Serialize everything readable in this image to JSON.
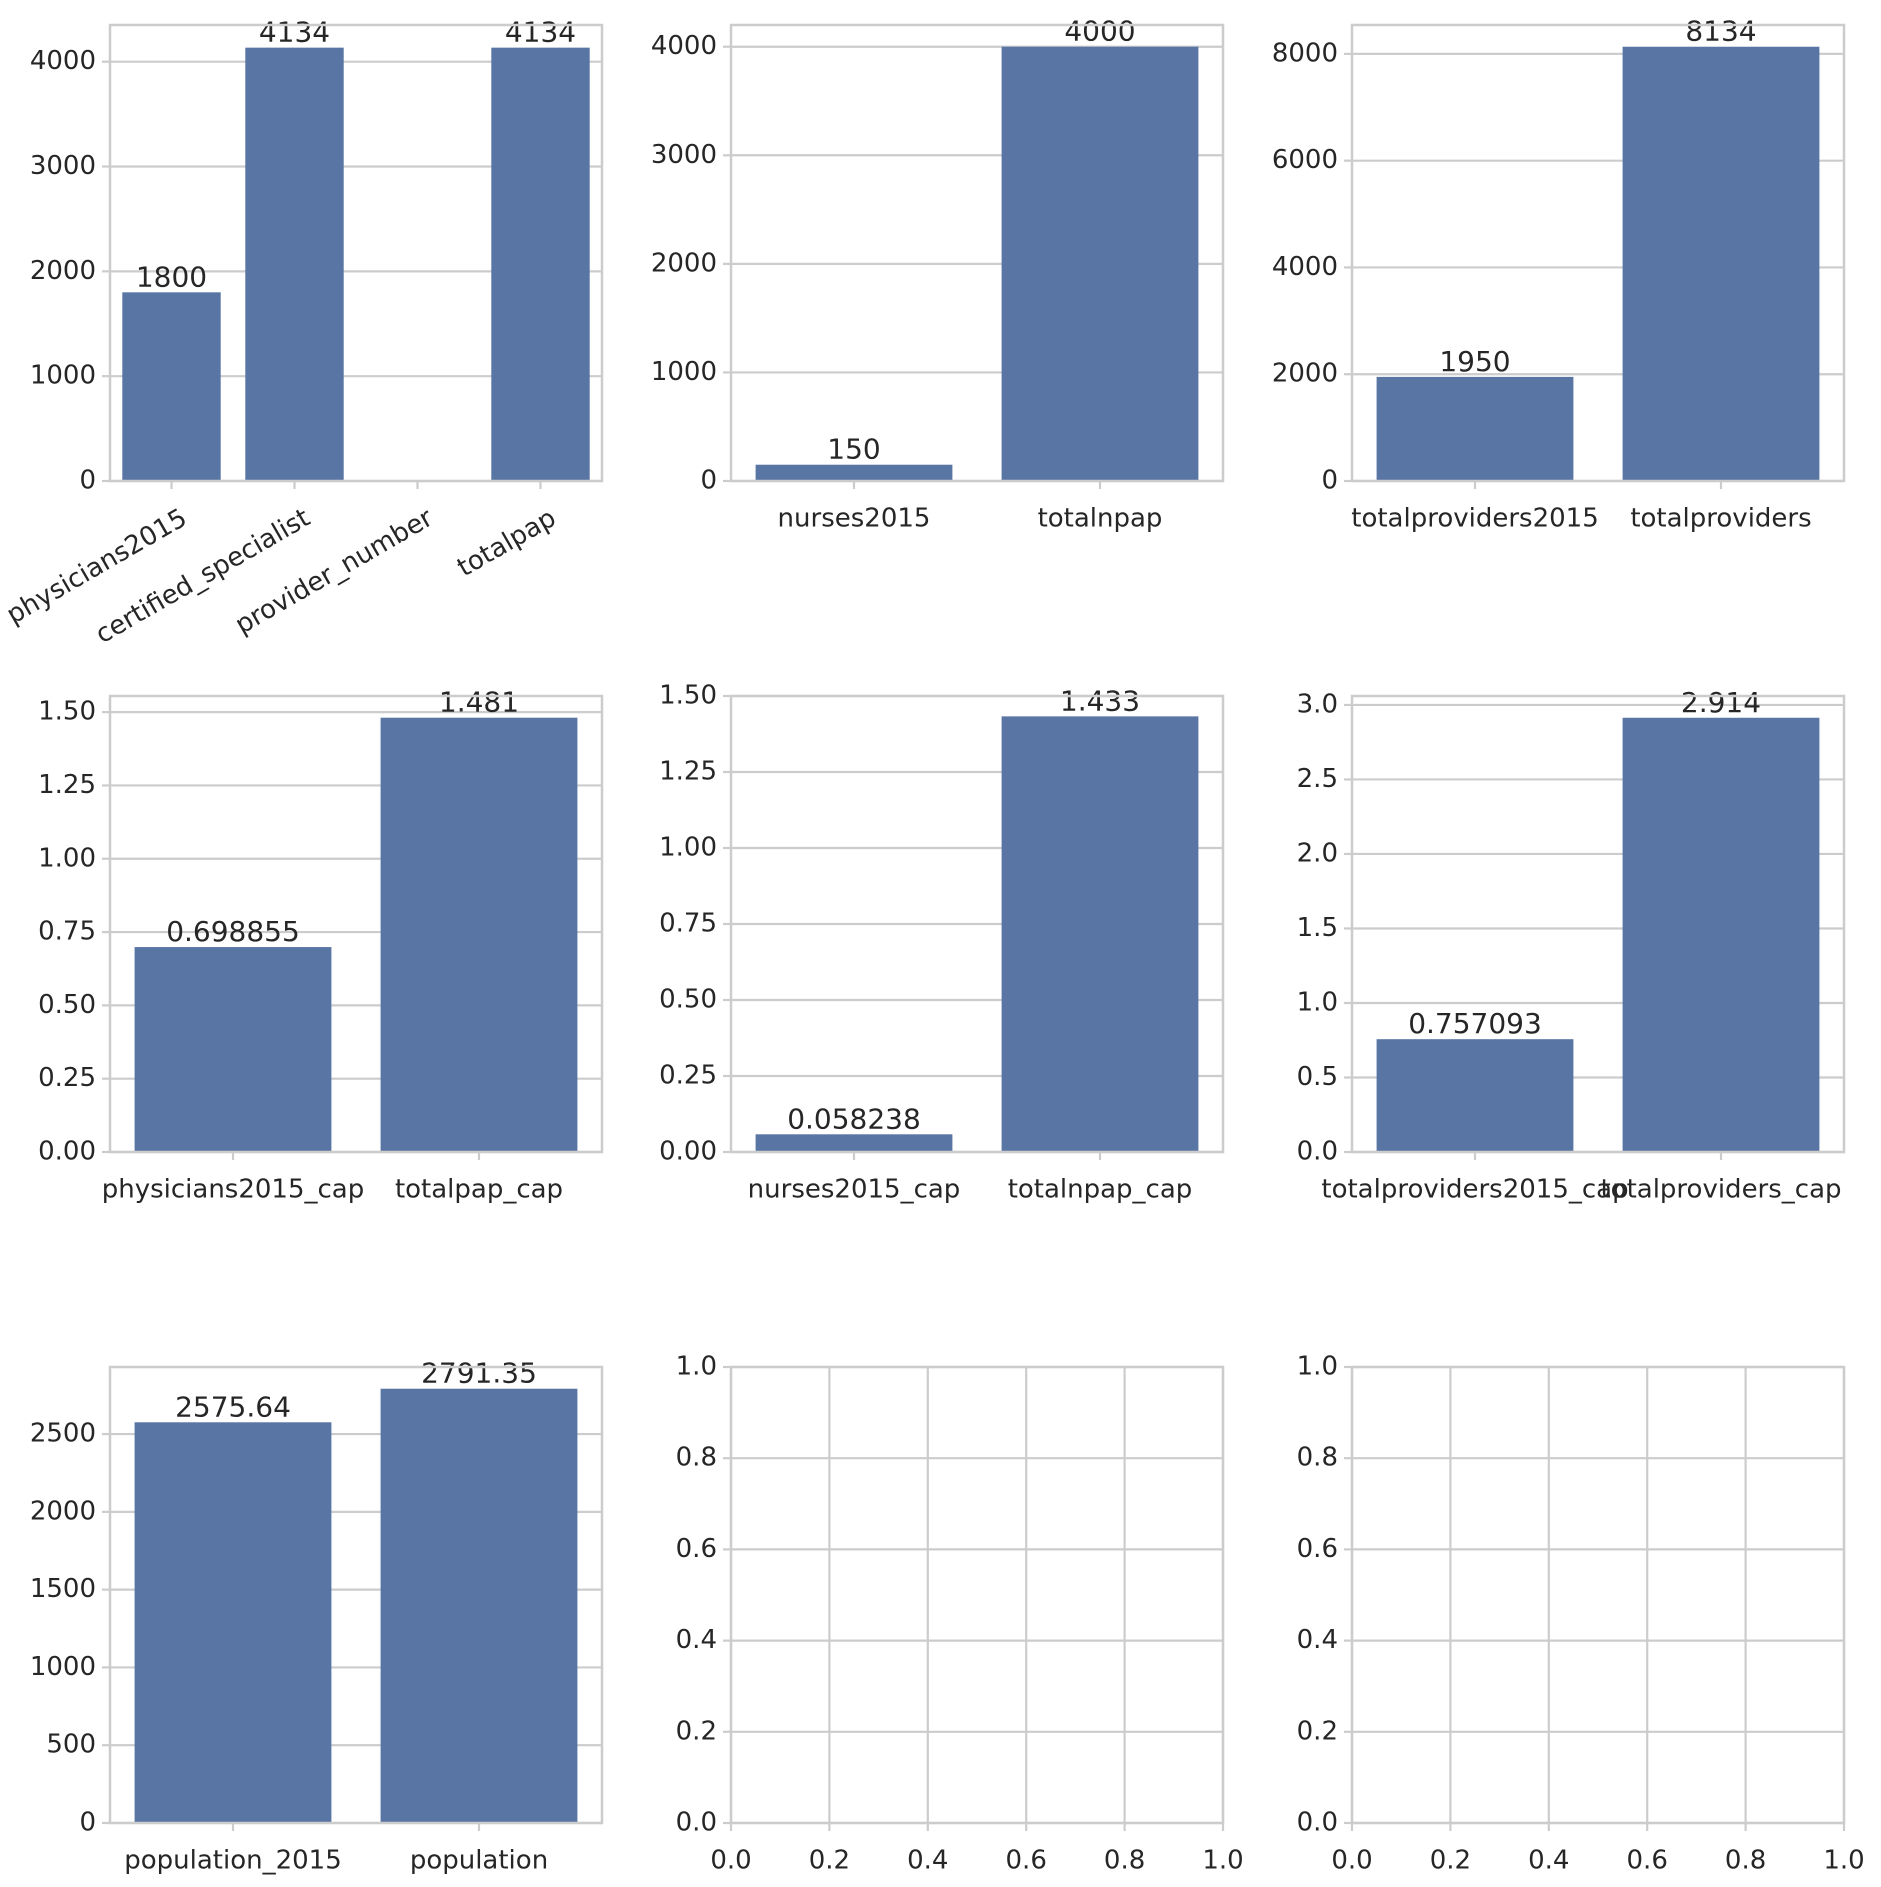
{
  "chart_data": [
    {
      "type": "bar",
      "categories": [
        "physicians2015",
        "certified_specialist",
        "provider_number",
        "totalpap"
      ],
      "values": [
        1800,
        4134,
        null,
        4134
      ],
      "value_labels": [
        "1800",
        "4134",
        "",
        "4134"
      ],
      "ylim": [
        0,
        4350
      ],
      "yticks": [
        0,
        1000,
        2000,
        3000,
        4000
      ],
      "ytick_labels": [
        "0",
        "1000",
        "2000",
        "3000",
        "4000"
      ],
      "xtick_rotation": -30,
      "grid": true,
      "color": "#5975a4"
    },
    {
      "type": "bar",
      "categories": [
        "nurses2015",
        "totalnpap"
      ],
      "values": [
        150,
        4000
      ],
      "value_labels": [
        "150",
        "4000"
      ],
      "ylim": [
        0,
        4200
      ],
      "yticks": [
        0,
        1000,
        2000,
        3000,
        4000
      ],
      "ytick_labels": [
        "0",
        "1000",
        "2000",
        "3000",
        "4000"
      ],
      "grid": true,
      "color": "#5975a4"
    },
    {
      "type": "bar",
      "categories": [
        "totalproviders2015",
        "totalproviders"
      ],
      "values": [
        1950,
        8134
      ],
      "value_labels": [
        "1950",
        "8134"
      ],
      "ylim": [
        0,
        8541
      ],
      "yticks": [
        0,
        2000,
        4000,
        6000,
        8000
      ],
      "ytick_labels": [
        "0",
        "2000",
        "4000",
        "6000",
        "8000"
      ],
      "grid": true,
      "color": "#5975a4"
    },
    {
      "type": "bar",
      "categories": [
        "physicians2015_cap",
        "totalpap_cap"
      ],
      "values": [
        0.698855,
        1.481
      ],
      "value_labels": [
        "0.698855",
        "1.481"
      ],
      "ylim": [
        0,
        1.555
      ],
      "yticks": [
        0,
        0.25,
        0.5,
        0.75,
        1.0,
        1.25,
        1.5
      ],
      "ytick_labels": [
        "0.00",
        "0.25",
        "0.50",
        "0.75",
        "1.00",
        "1.25",
        "1.50"
      ],
      "grid": true,
      "color": "#5975a4"
    },
    {
      "type": "bar",
      "categories": [
        "nurses2015_cap",
        "totalnpap_cap"
      ],
      "values": [
        0.058238,
        1.433
      ],
      "value_labels": [
        "0.058238",
        "1.433"
      ],
      "ylim": [
        0,
        1.5
      ],
      "yticks": [
        0,
        0.25,
        0.5,
        0.75,
        1.0,
        1.25,
        1.5
      ],
      "ytick_labels": [
        "0.00",
        "0.25",
        "0.50",
        "0.75",
        "1.00",
        "1.25",
        "1.50"
      ],
      "grid": true,
      "color": "#5975a4"
    },
    {
      "type": "bar",
      "categories": [
        "totalproviders2015_cap",
        "totalproviders_cap"
      ],
      "values": [
        0.757093,
        2.914
      ],
      "value_labels": [
        "0.757093",
        "2.914"
      ],
      "ylim": [
        0,
        3.06
      ],
      "yticks": [
        0,
        0.5,
        1.0,
        1.5,
        2.0,
        2.5,
        3.0
      ],
      "ytick_labels": [
        "0.0",
        "0.5",
        "1.0",
        "1.5",
        "2.0",
        "2.5",
        "3.0"
      ],
      "grid": true,
      "color": "#5975a4"
    },
    {
      "type": "bar",
      "categories": [
        "population_2015",
        "population"
      ],
      "values": [
        2575.64,
        2791.35
      ],
      "value_labels": [
        "2575.64",
        "2791.35"
      ],
      "ylim": [
        0,
        2931
      ],
      "yticks": [
        0,
        500,
        1000,
        1500,
        2000,
        2500
      ],
      "ytick_labels": [
        "0",
        "500",
        "1000",
        "1500",
        "2000",
        "2500"
      ],
      "grid": true,
      "color": "#5975a4"
    },
    {
      "type": "bar",
      "categories": [],
      "values": [],
      "xlim": [
        0,
        1
      ],
      "ylim": [
        0,
        1
      ],
      "xticks": [
        0,
        0.2,
        0.4,
        0.6,
        0.8,
        1.0
      ],
      "xtick_labels": [
        "0.0",
        "0.2",
        "0.4",
        "0.6",
        "0.8",
        "1.0"
      ],
      "yticks": [
        0,
        0.2,
        0.4,
        0.6,
        0.8,
        1.0
      ],
      "ytick_labels": [
        "0.0",
        "0.2",
        "0.4",
        "0.6",
        "0.8",
        "1.0"
      ],
      "grid": true
    },
    {
      "type": "bar",
      "categories": [],
      "values": [],
      "xlim": [
        0,
        1
      ],
      "ylim": [
        0,
        1
      ],
      "xticks": [
        0,
        0.2,
        0.4,
        0.6,
        0.8,
        1.0
      ],
      "xtick_labels": [
        "0.0",
        "0.2",
        "0.4",
        "0.6",
        "0.8",
        "1.0"
      ],
      "yticks": [
        0,
        0.2,
        0.4,
        0.6,
        0.8,
        1.0
      ],
      "ytick_labels": [
        "0.0",
        "0.2",
        "0.4",
        "0.6",
        "0.8",
        "1.0"
      ],
      "grid": true
    }
  ]
}
